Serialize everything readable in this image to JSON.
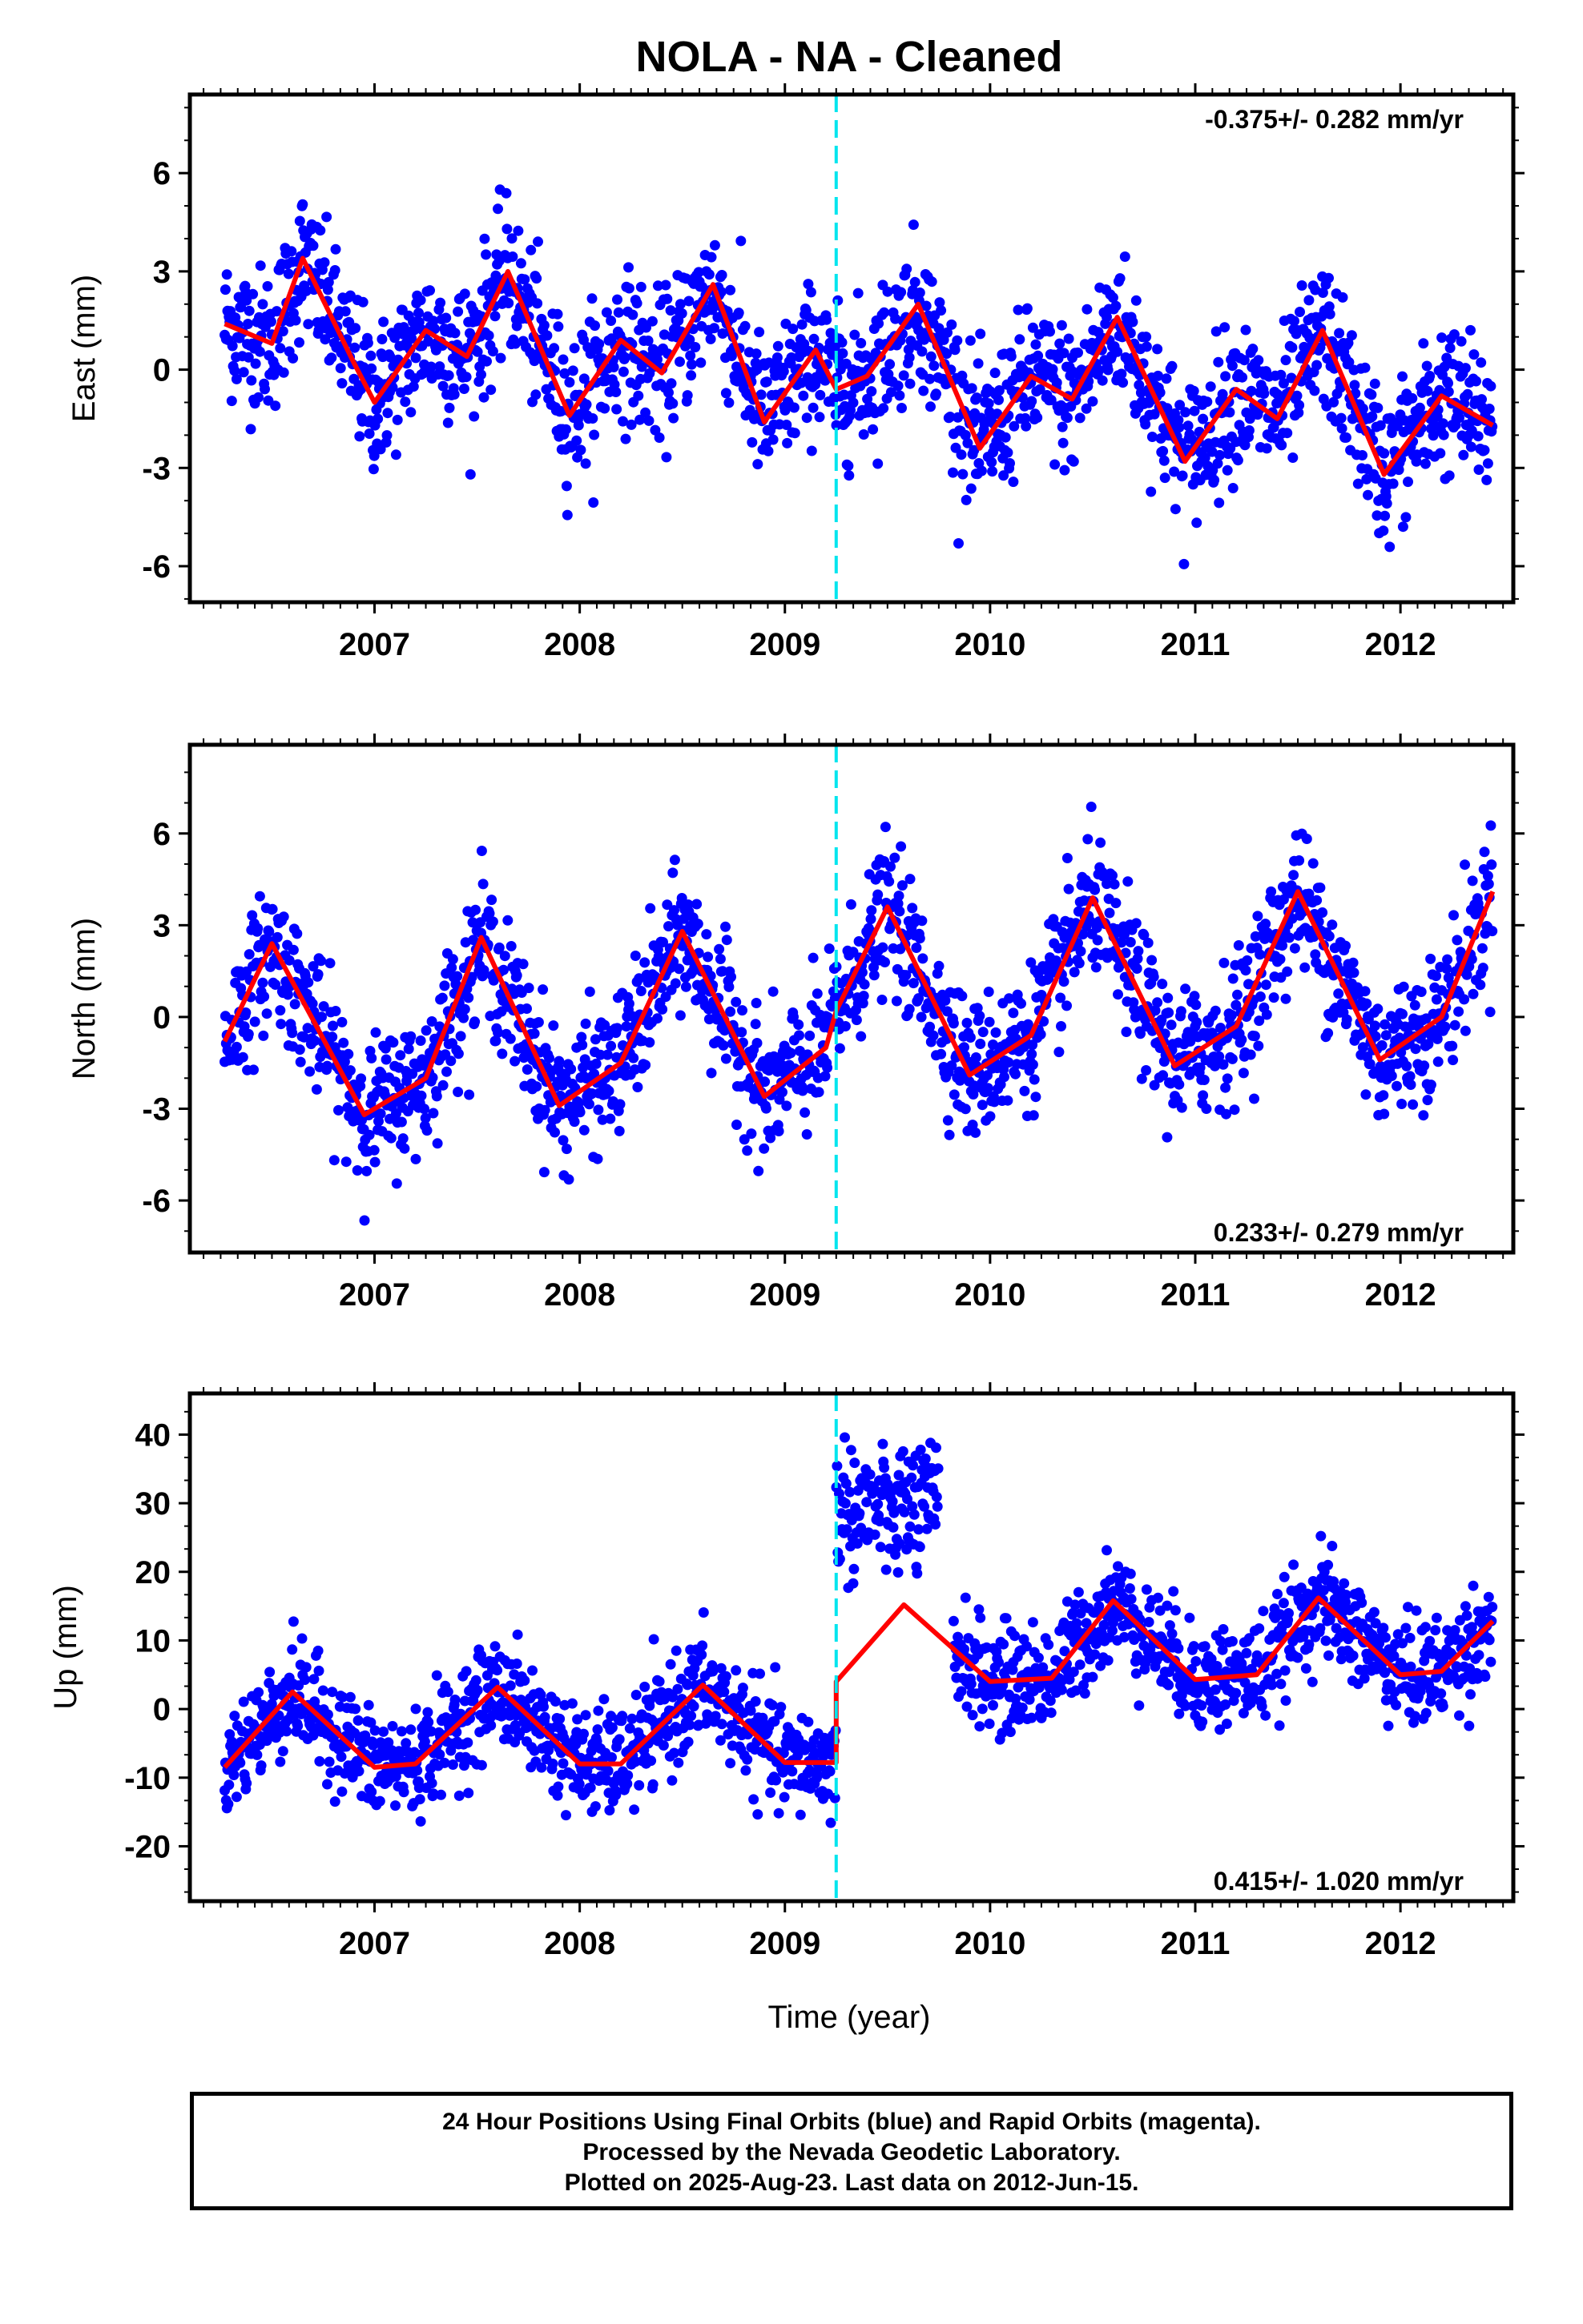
{
  "title": "NOLA  - NA - Cleaned",
  "xlabel": "Time (year)",
  "footer": {
    "line1": "24 Hour Positions Using Final Orbits (blue) and Rapid Orbits (magenta).",
    "line2": "Processed by the Nevada Geodetic Laboratory.",
    "line3": "Plotted on 2025-Aug-23. Last data on 2012-Jun-15."
  },
  "colors": {
    "points": "#0000ff",
    "model": "#ff0000",
    "break_line": "#00e5ee",
    "frame": "#000000"
  },
  "chart_data": [
    {
      "type": "scatter",
      "ylabel": "East (mm)",
      "rate_label": "-0.375+/- 0.282 mm/yr",
      "rate_position": "top-right",
      "xlim": [
        2006.1,
        2012.55
      ],
      "ylim": [
        -7.1,
        8.4
      ],
      "xticks": [
        2007,
        2008,
        2009,
        2010,
        2011,
        2012
      ],
      "yticks": [
        -6,
        -3,
        0,
        3,
        6
      ],
      "break_epoch": 2009.25,
      "data_range": [
        2006.27,
        2012.45
      ],
      "offset": 0,
      "trend": -0.375,
      "mean": 0.5,
      "model": {
        "a1": 1.8,
        "p1": -1.2,
        "a2": 0.7,
        "p2": 0.2
      },
      "noise": 1.1,
      "model_series": {
        "x": [
          2006.27,
          2006.5,
          2006.65,
          2006.9,
          2007.0,
          2007.25,
          2007.45,
          2007.65,
          2007.95,
          2008.2,
          2008.4,
          2008.65,
          2008.9,
          2009.15,
          2009.25,
          2009.4,
          2009.65,
          2009.95,
          2010.2,
          2010.4,
          2010.62,
          2010.95,
          2011.2,
          2011.4,
          2011.62,
          2011.92,
          2012.2,
          2012.45
        ],
        "y": [
          1.4,
          0.8,
          3.4,
          0.2,
          -1.0,
          1.2,
          0.4,
          3.0,
          -1.4,
          0.9,
          -0.1,
          2.6,
          -1.6,
          0.6,
          -0.6,
          -0.2,
          2.0,
          -2.4,
          -0.2,
          -0.9,
          1.6,
          -2.8,
          -0.6,
          -1.5,
          1.2,
          -3.2,
          -0.8,
          -1.7
        ]
      }
    },
    {
      "type": "scatter",
      "ylabel": "North (mm)",
      "rate_label": "0.233+/- 0.279 mm/yr",
      "rate_position": "bottom-right",
      "xlim": [
        2006.1,
        2012.55
      ],
      "ylim": [
        -7.7,
        8.9
      ],
      "xticks": [
        2007,
        2008,
        2009,
        2010,
        2011,
        2012
      ],
      "yticks": [
        -6,
        -3,
        0,
        3,
        6
      ],
      "break_epoch": 2009.25,
      "data_range": [
        2006.27,
        2012.45
      ],
      "offset": 1.2,
      "trend": 0.233,
      "mean": -0.5,
      "model": {
        "a1": 2.9,
        "p1": 0.0,
        "a2": 0.5,
        "p2": 0.6
      },
      "noise": 1.1,
      "model_series": {
        "x": [
          2006.27,
          2006.5,
          2006.95,
          2007.25,
          2007.52,
          2007.9,
          2008.2,
          2008.5,
          2008.9,
          2009.2,
          2009.25,
          2009.5,
          2009.9,
          2010.2,
          2010.5,
          2010.9,
          2011.2,
          2011.5,
          2011.9,
          2012.2,
          2012.45
        ],
        "y": [
          -0.8,
          2.4,
          -3.2,
          -2.0,
          2.6,
          -2.9,
          -1.5,
          2.8,
          -2.6,
          -1.0,
          0.2,
          3.6,
          -1.9,
          -0.6,
          3.9,
          -1.6,
          -0.3,
          4.1,
          -1.4,
          0.0,
          4.1
        ]
      }
    },
    {
      "type": "scatter",
      "ylabel": "Up (mm)",
      "rate_label": "0.415+/- 1.020 mm/yr",
      "rate_position": "bottom-right",
      "xlim": [
        2006.1,
        2012.55
      ],
      "ylim": [
        -28,
        46
      ],
      "xticks": [
        2007,
        2008,
        2009,
        2010,
        2011,
        2012
      ],
      "yticks": [
        -20,
        -10,
        0,
        10,
        20,
        30,
        40
      ],
      "break_epoch": 2009.25,
      "data_range": [
        2006.27,
        2012.45
      ],
      "offset": 12,
      "trend": 0.415,
      "mean": -2.3,
      "model": {
        "a1": 5.5,
        "p1": -0.9,
        "a2": 1.5,
        "p2": 1.6
      },
      "noise": 3.8,
      "data_gap": [
        2009.75,
        2009.82
      ],
      "outlier_cluster": {
        "x": [
          2009.25,
          2009.75
        ],
        "y_center": 29,
        "spread": 5
      },
      "model_series": {
        "x": [
          2006.27,
          2006.6,
          2007.0,
          2007.2,
          2007.6,
          2008.0,
          2008.2,
          2008.6,
          2009.0,
          2009.25,
          2009.25,
          2009.58,
          2010.0,
          2010.3,
          2010.6,
          2011.0,
          2011.3,
          2011.6,
          2012.0,
          2012.2,
          2012.45
        ],
        "y": [
          -8.5,
          2.5,
          -8.5,
          -8.0,
          3.2,
          -8.0,
          -8.0,
          3.5,
          -7.8,
          -7.8,
          4.0,
          15.2,
          4.0,
          4.5,
          15.8,
          4.3,
          5.0,
          16.2,
          5.0,
          5.5,
          12.8
        ]
      }
    }
  ]
}
